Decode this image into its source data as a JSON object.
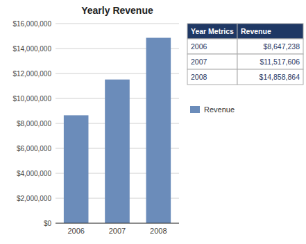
{
  "chart_data": [
    {
      "type": "bar",
      "title": "Yearly Revenue",
      "categories": [
        "2006",
        "2007",
        "2008"
      ],
      "series": [
        {
          "name": "Revenue",
          "color": "#6b8cba",
          "values": [
            8647238,
            11517606,
            14858864
          ]
        }
      ],
      "ylim": [
        0,
        16000000
      ],
      "yticks": [
        {
          "value": 0,
          "label": "$0"
        },
        {
          "value": 2000000,
          "label": "$2,000,000"
        },
        {
          "value": 4000000,
          "label": "$4,000,000"
        },
        {
          "value": 6000000,
          "label": "$6,000,000"
        },
        {
          "value": 8000000,
          "label": "$8,000,000"
        },
        {
          "value": 10000000,
          "label": "$10,000,000"
        },
        {
          "value": 12000000,
          "label": "$12,000,000"
        },
        {
          "value": 14000000,
          "label": "$14,000,000"
        },
        {
          "value": 16000000,
          "label": "$16,000,000"
        }
      ],
      "grid": true,
      "legend": "right"
    },
    {
      "type": "table",
      "columns": [
        "Year Metrics",
        "Revenue"
      ],
      "rows": [
        [
          "2006",
          "$8,647,238"
        ],
        [
          "2007",
          "$11,517,606"
        ],
        [
          "2008",
          "$14,858,864"
        ]
      ]
    }
  ]
}
